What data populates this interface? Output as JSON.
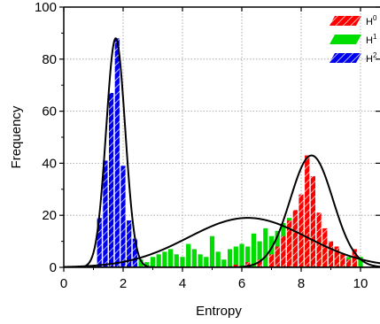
{
  "chart_data": {
    "type": "bar",
    "title": "",
    "xlabel": "Entropy",
    "ylabel": "Frequency",
    "xlim": [
      0,
      11
    ],
    "ylim": [
      0,
      100
    ],
    "xticks": [
      0,
      2,
      4,
      6,
      8,
      10
    ],
    "yticks": [
      0,
      20,
      40,
      60,
      80,
      100
    ],
    "grid": true,
    "grid_style": "dotted",
    "legend_position": "top-right",
    "bin_width": 0.2,
    "series": [
      {
        "name": "H0",
        "legend_base": "H",
        "legend_sup": "0",
        "color": "#ff0000",
        "pattern": "diagonal-hatch",
        "x": [
          5.8,
          6.2,
          6.6,
          7.0,
          7.2,
          7.4,
          7.6,
          7.8,
          8.0,
          8.2,
          8.4,
          8.6,
          8.8,
          9.0,
          9.2,
          9.4,
          9.6,
          9.8
        ],
        "values": [
          1,
          2,
          3,
          5,
          8,
          12,
          18,
          22,
          28,
          43,
          35,
          21,
          15,
          10,
          8,
          5,
          3,
          7
        ]
      },
      {
        "name": "H1",
        "legend_base": "H",
        "legend_sup": "1",
        "color": "#00dd00",
        "pattern": "solid",
        "x": [
          2.2,
          2.4,
          2.6,
          2.8,
          3.0,
          3.2,
          3.4,
          3.6,
          3.8,
          4.0,
          4.2,
          4.4,
          4.6,
          4.8,
          5.0,
          5.2,
          5.4,
          5.6,
          5.8,
          6.0,
          6.2,
          6.4,
          6.6,
          6.8,
          7.0,
          7.2,
          7.4,
          7.6,
          7.8,
          8.0,
          8.2,
          8.4,
          8.6,
          8.8,
          9.0,
          9.2,
          9.4,
          9.6,
          9.8,
          10.0
        ],
        "values": [
          1,
          2,
          3,
          2,
          4,
          5,
          6,
          7,
          5,
          4,
          9,
          7,
          5,
          4,
          12,
          6,
          3,
          7,
          8,
          9,
          8,
          13,
          10,
          15,
          12,
          14,
          17,
          19,
          16,
          18,
          15,
          13,
          12,
          10,
          8,
          7,
          5,
          4,
          3,
          4
        ]
      },
      {
        "name": "H2",
        "legend_base": "H",
        "legend_sup": "2",
        "color": "#0000ee",
        "pattern": "diagonal-hatch",
        "x": [
          1.2,
          1.4,
          1.6,
          1.8,
          2.0,
          2.2,
          2.4
        ],
        "values": [
          19,
          41,
          67,
          88,
          39,
          18,
          11
        ]
      }
    ],
    "curves": [
      {
        "color": "#000000",
        "type": "gaussian",
        "amplitude": 88,
        "mean": 1.75,
        "sd": 0.32
      },
      {
        "color": "#000000",
        "type": "gaussian",
        "amplitude": 19,
        "mean": 6.2,
        "sd": 2.0
      },
      {
        "color": "#000000",
        "type": "gaussian",
        "amplitude": 43,
        "mean": 8.35,
        "sd": 0.72
      }
    ]
  }
}
